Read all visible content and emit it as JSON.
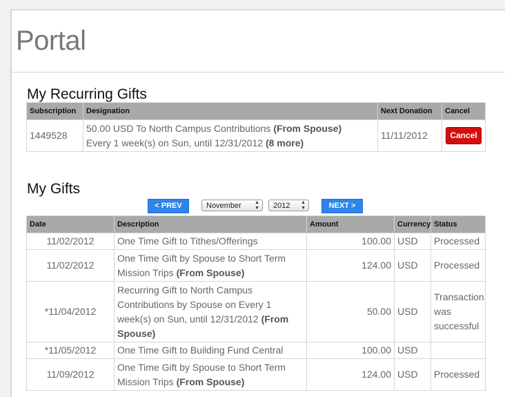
{
  "header": {
    "title": "Portal"
  },
  "recurring": {
    "title": "My Recurring Gifts",
    "columns": [
      "Subscription",
      "Designation",
      "Next Donation",
      "Cancel"
    ],
    "row": {
      "subscription": "1449528",
      "line1": "50.00 USD To North Campus Contributions",
      "line1_bold": "(From Spouse)",
      "line2": "Every 1 week(s) on Sun, until 12/31/2012",
      "line2_bold": "(8 more)",
      "next_donation": "11/11/2012",
      "cancel_label": "Cancel"
    }
  },
  "gifts": {
    "title": "My Gifts",
    "prev_label": "< PREV",
    "next_label": "NEXT >",
    "month": "November",
    "year": "2012",
    "columns": [
      "Date",
      "Description",
      "Amount",
      "Currency",
      "Status"
    ],
    "rows": [
      {
        "date": "11/02/2012",
        "desc": "One Time Gift to Tithes/Offerings",
        "bold": "",
        "amount": "100.00",
        "currency": "USD",
        "status": "Processed"
      },
      {
        "date": "11/02/2012",
        "desc": "One Time Gift by Spouse to Short Term Mission Trips",
        "bold": "(From Spouse)",
        "amount": "124.00",
        "currency": "USD",
        "status": "Processed"
      },
      {
        "date": "*11/04/2012",
        "desc": "Recurring Gift to North Campus Contributions by Spouse on Every 1 week(s) on Sun, until 12/31/2012",
        "bold": "(From Spouse)",
        "amount": "50.00",
        "currency": "USD",
        "status": "Transaction was successful"
      },
      {
        "date": "*11/05/2012",
        "desc": "One Time Gift to Building Fund Central",
        "bold": "",
        "amount": "100.00",
        "currency": "USD",
        "status": ""
      },
      {
        "date": "11/09/2012",
        "desc": "One Time Gift by Spouse to Short Term Mission Trips",
        "bold": "(From Spouse)",
        "amount": "124.00",
        "currency": "USD",
        "status": "Processed"
      }
    ]
  }
}
